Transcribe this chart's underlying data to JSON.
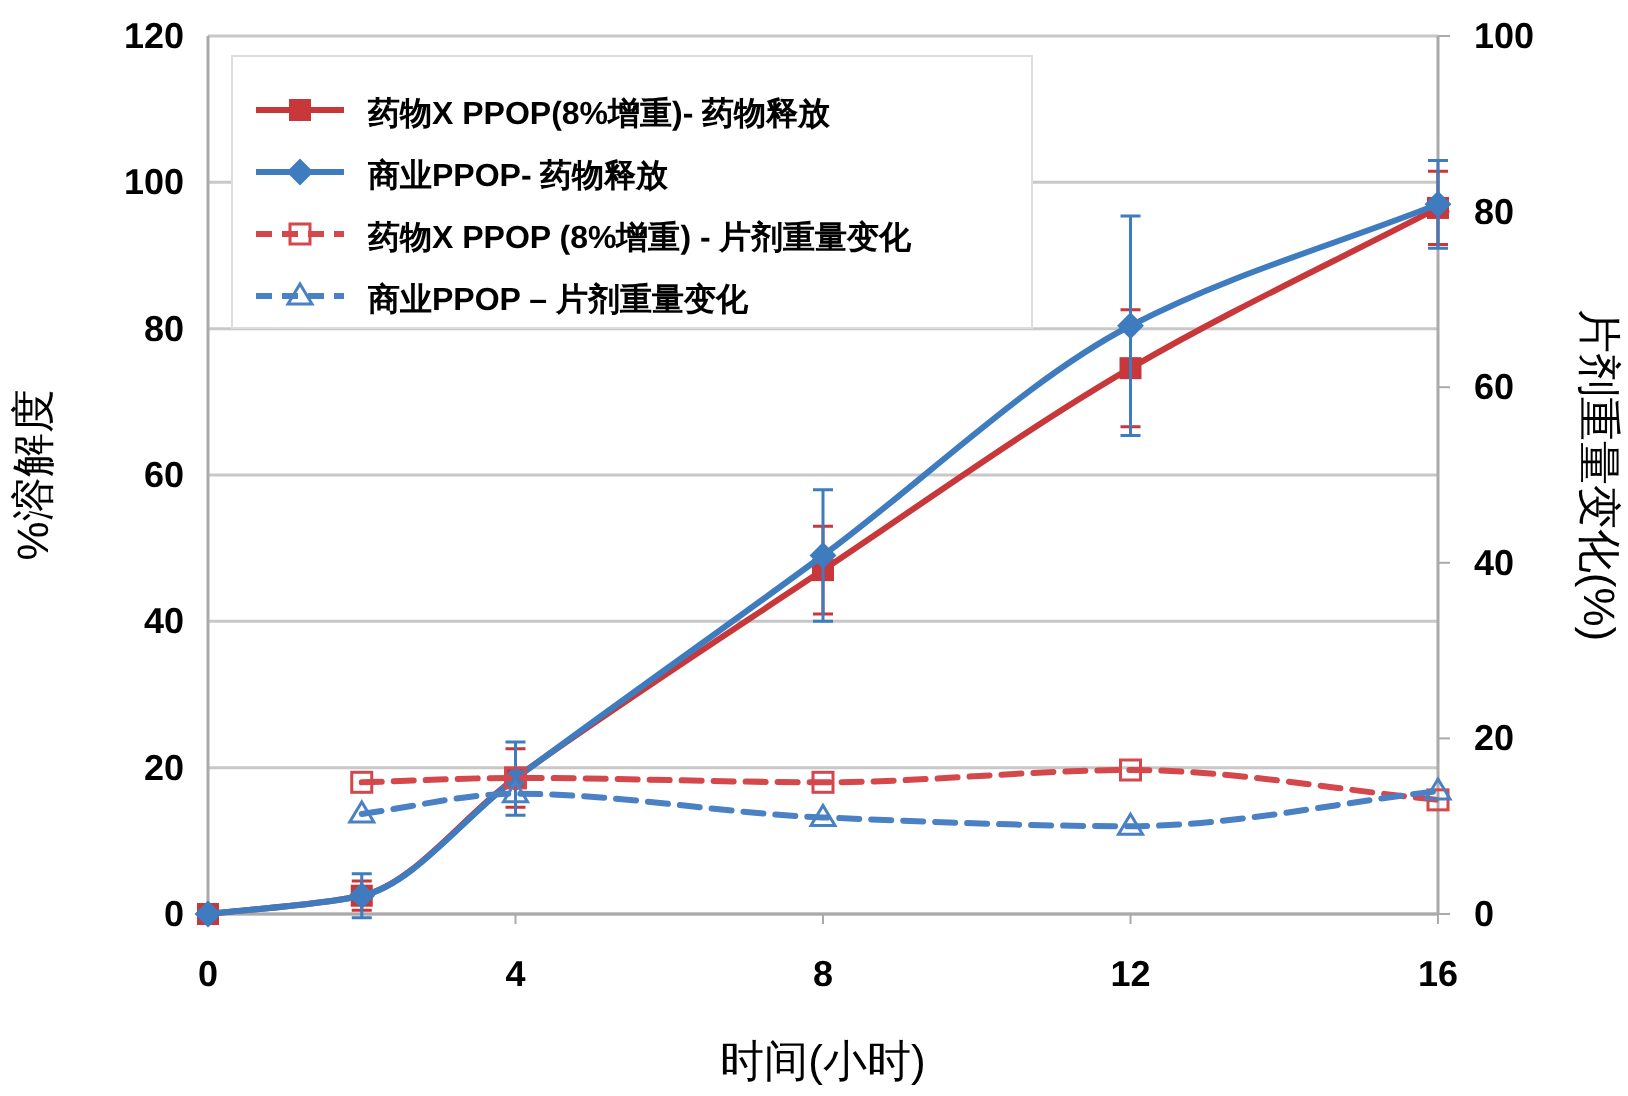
{
  "chart_data": {
    "type": "line",
    "xlabel": "时间(小时)",
    "ylabel": "%溶解度",
    "y2label": "片剂重量变化(%)",
    "x": [
      0,
      2,
      4,
      8,
      12,
      16
    ],
    "xlim": [
      0,
      16
    ],
    "xticks": [
      0,
      4,
      8,
      12,
      16
    ],
    "ylim": [
      0,
      120
    ],
    "yticks": [
      0,
      20,
      40,
      60,
      80,
      100,
      120
    ],
    "y2lim": [
      0,
      100
    ],
    "y2ticks": [
      0,
      20,
      40,
      60,
      80,
      100
    ],
    "grid": "y",
    "legend": "top left",
    "series": [
      {
        "name": "药物X PPOP(8%增重)- 药物释放",
        "color": "#c8373a",
        "values": [
          0,
          2.5,
          18.6,
          47,
          74.6,
          96.5
        ],
        "errors": [
          null,
          2,
          4,
          6,
          8,
          5
        ],
        "marker": "square",
        "line_style": "solid"
      },
      {
        "name": "商业PPOP- 药物释放",
        "color": "#3f7cbf",
        "values": [
          0,
          2.5,
          18.5,
          49,
          80.4,
          97
        ],
        "errors": [
          null,
          3,
          5,
          9,
          15,
          6
        ],
        "marker": "diamond",
        "line_style": "solid"
      },
      {
        "name": "药物X PPOP (8%增重) - 片剂重量变化",
        "color": "#d4474a",
        "axis": "y2",
        "x": [
          2,
          4,
          8,
          12,
          16
        ],
        "values": [
          15,
          15.5,
          15,
          16.4,
          13
        ],
        "marker": "square",
        "line_style": "dashed"
      },
      {
        "name": "商业PPOP – 片剂重量变化",
        "color": "#4a80c4",
        "axis": "y2",
        "x": [
          2,
          4,
          8,
          12,
          16
        ],
        "values": [
          11.4,
          13.7,
          11,
          10,
          14
        ],
        "marker": "triangle",
        "line_style": "dashed"
      }
    ]
  }
}
